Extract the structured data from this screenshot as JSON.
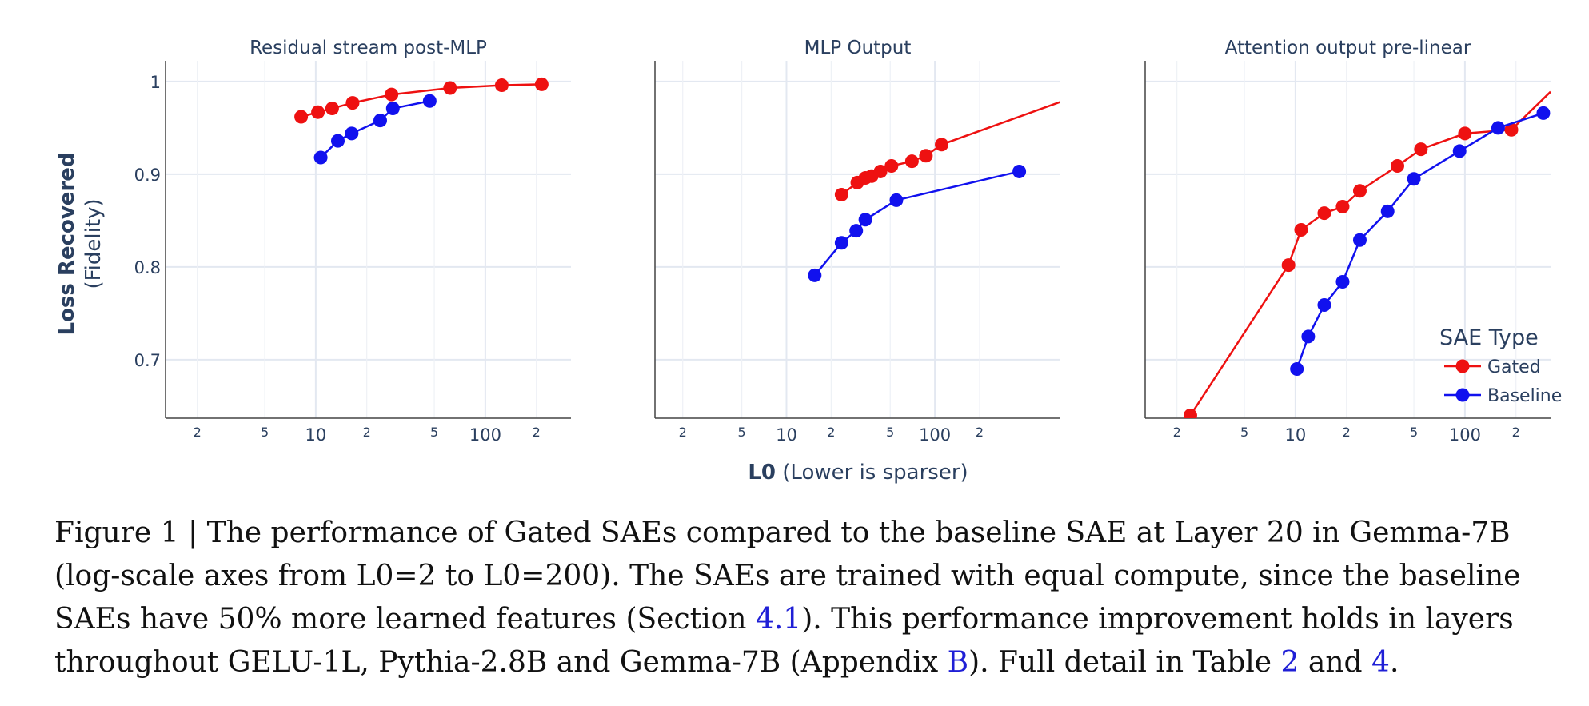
{
  "chart_data": {
    "type": "line",
    "ylabel": "Loss Recovered",
    "ylabel_sub": "(Fidelity)",
    "xlabel": "L0",
    "xlabel_sub": "(Lower is sparser)",
    "x_scale": "log",
    "y_major_ticks": [
      0.7,
      0.8,
      0.9,
      1
    ],
    "y_tick_labels": [
      "0.7",
      "0.8",
      "0.9",
      "1"
    ],
    "x_major_ticks": [
      10,
      100
    ],
    "x_major_labels": [
      "10",
      "100"
    ],
    "x_minor_ticks": [
      2,
      5,
      20,
      50,
      200
    ],
    "x_minor_labels": [
      "2",
      "5",
      "2",
      "5",
      "2"
    ],
    "grid": true,
    "legend": {
      "title": "SAE Type",
      "placement": "bottom-right",
      "entries": [
        "Gated",
        "Baseline"
      ]
    },
    "series_colors": {
      "Gated": "#ee1111",
      "Baseline": "#1111ee"
    },
    "panels": [
      {
        "title": "Residual stream post-MLP",
        "xlim": [
          1.3,
          320
        ],
        "ylim": [
          0.637,
          1.012
        ],
        "series": [
          {
            "name": "Gated",
            "x": [
              8.2,
              10.3,
              12.5,
              16.5,
              28,
              62,
              125,
              215
            ],
            "y": [
              0.962,
              0.967,
              0.971,
              0.977,
              0.986,
              0.993,
              0.996,
              0.997
            ]
          },
          {
            "name": "Baseline",
            "x": [
              10.7,
              13.5,
              16.3,
              24,
              28.5,
              47
            ],
            "y": [
              0.918,
              0.936,
              0.944,
              0.958,
              0.971,
              0.979
            ]
          }
        ]
      },
      {
        "title": "MLP Output",
        "xlim": [
          1.3,
          700
        ],
        "ylim": [
          0.637,
          1.012
        ],
        "series": [
          {
            "name": "Gated",
            "x": [
              23.5,
              30,
              34,
              37.5,
              43,
              51,
              70,
              87,
              111,
              700
            ],
            "y": [
              0.878,
              0.891,
              0.896,
              0.898,
              0.903,
              0.909,
              0.914,
              0.92,
              0.932,
              0.978
            ]
          },
          {
            "name": "Baseline",
            "x": [
              15.5,
              23.5,
              29.5,
              34,
              55,
              370
            ],
            "y": [
              0.791,
              0.826,
              0.839,
              0.851,
              0.872,
              0.903
            ]
          }
        ]
      },
      {
        "title": "Attention output pre-linear",
        "xlim": [
          1.3,
          320
        ],
        "ylim": [
          0.637,
          1.012
        ],
        "series": [
          {
            "name": "Gated",
            "x": [
              2.4,
              9.1,
              10.8,
              14.8,
              19,
              24,
              40,
              55,
              100,
              188,
              320
            ],
            "y": [
              0.64,
              0.802,
              0.84,
              0.858,
              0.865,
              0.882,
              0.909,
              0.927,
              0.944,
              0.948,
              0.989
            ]
          },
          {
            "name": "Baseline",
            "x": [
              10.2,
              11.9,
              14.8,
              19,
              24,
              35,
              50,
              93,
              157,
              290
            ],
            "y": [
              0.69,
              0.725,
              0.759,
              0.784,
              0.829,
              0.86,
              0.895,
              0.925,
              0.95,
              0.966
            ]
          }
        ]
      }
    ]
  },
  "caption": {
    "prefix": "Figure 1 | The performance of Gated SAEs compared to the baseline SAE at Layer 20 in Gemma-7B (log-scale axes from L0=2 to L0=200). The SAEs are trained with equal compute, since the baseline SAEs have 50% more learned features (Section ",
    "ref1": "4.1",
    "mid1": "). This performance improvement holds in layers throughout GELU-1L, Pythia-2.8B and Gemma-7B (Appendix ",
    "ref2": "B",
    "mid2": "). Full detail in Table ",
    "ref3": "2",
    "mid3": " and ",
    "ref4": "4",
    "suffix": "."
  }
}
